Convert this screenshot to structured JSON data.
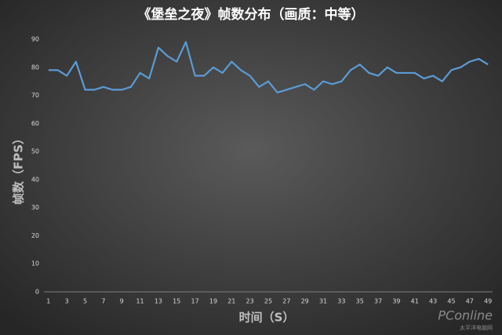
{
  "chart_data": {
    "type": "line",
    "title": "《堡垒之夜》帧数分布（画质：中等）",
    "x_label": "时间（S）",
    "y_label": "帧数（FPS）",
    "categories": [
      1,
      null,
      3,
      null,
      5,
      null,
      7,
      null,
      9,
      null,
      11,
      null,
      13,
      null,
      15,
      null,
      17,
      null,
      19,
      null,
      21,
      null,
      23,
      null,
      25,
      null,
      27,
      null,
      29,
      null,
      31,
      null,
      33,
      null,
      35,
      null,
      37,
      null,
      39,
      null,
      41,
      null,
      43,
      null,
      45,
      null,
      47,
      null,
      49
    ],
    "values": [
      79,
      79,
      77,
      82,
      72,
      72,
      73,
      72,
      72,
      73,
      78,
      76,
      87,
      84,
      82,
      89,
      77,
      77,
      80,
      78,
      82,
      79,
      77,
      73,
      75,
      71,
      72,
      73,
      74,
      72,
      75,
      74,
      75,
      79,
      81,
      78,
      77,
      80,
      78,
      78,
      78,
      76,
      77,
      75,
      79,
      80,
      82,
      83,
      81
    ],
    "color": "#5b9bd5",
    "ylim": [
      0,
      90
    ],
    "yticks": [
      0,
      10,
      20,
      30,
      40,
      50,
      60,
      70,
      80,
      90
    ],
    "grid": false
  },
  "watermark": {
    "brand": "PConline",
    "subtitle": "太平洋电脑网"
  }
}
